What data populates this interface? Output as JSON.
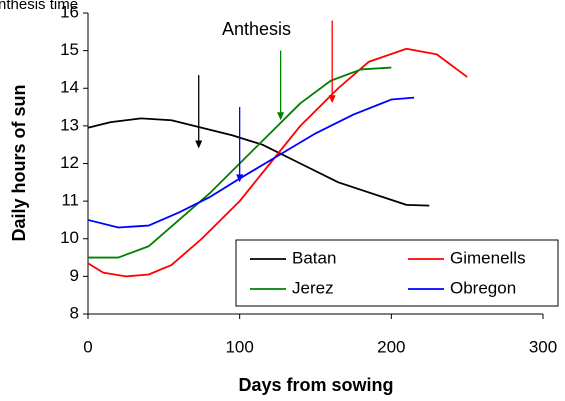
{
  "chart_data": {
    "type": "line",
    "xlabel": "Days from sowing",
    "ylabel": "Daily hours of sun",
    "annotations": [
      "Anthesis time",
      "Anthesis"
    ],
    "xlim": [
      0,
      300
    ],
    "xticks": [
      0,
      100,
      200,
      300
    ],
    "ylim": [
      8,
      16
    ],
    "yticks": [
      8,
      9,
      10,
      11,
      12,
      13,
      14,
      15,
      16
    ],
    "series": [
      {
        "name": "Batan",
        "color": "#000000",
        "x": [
          0,
          15,
          35,
          55,
          75,
          95,
          115,
          140,
          165,
          195,
          210,
          225
        ],
        "values": [
          12.95,
          13.1,
          13.2,
          13.15,
          12.95,
          12.75,
          12.5,
          12.0,
          11.5,
          11.1,
          10.9,
          10.88
        ]
      },
      {
        "name": "Gimenells",
        "color": "#ff0000",
        "x": [
          0,
          10,
          25,
          40,
          55,
          75,
          100,
          120,
          140,
          165,
          185,
          210,
          230,
          250
        ],
        "values": [
          9.35,
          9.1,
          9.0,
          9.05,
          9.3,
          10.0,
          11.0,
          12.0,
          13.0,
          14.0,
          14.7,
          15.05,
          14.9,
          14.3
        ]
      },
      {
        "name": "Jerez",
        "color": "#008000",
        "x": [
          0,
          20,
          40,
          60,
          80,
          100,
          120,
          140,
          160,
          180,
          200
        ],
        "values": [
          9.5,
          9.5,
          9.8,
          10.5,
          11.2,
          12.0,
          12.8,
          13.6,
          14.2,
          14.5,
          14.55
        ]
      },
      {
        "name": "Obregon",
        "color": "#0000ff",
        "x": [
          0,
          20,
          40,
          60,
          80,
          100,
          125,
          150,
          175,
          200,
          215
        ],
        "values": [
          10.5,
          10.3,
          10.35,
          10.7,
          11.1,
          11.6,
          12.2,
          12.8,
          13.3,
          13.7,
          13.75
        ]
      }
    ],
    "arrows": [
      {
        "color": "#000000",
        "x": 73,
        "from": 14.35,
        "to": 12.4
      },
      {
        "color": "#0000ff",
        "x": 100,
        "from": 13.5,
        "to": 11.5
      },
      {
        "color": "#008000",
        "x": 127,
        "from": 15.0,
        "to": 13.15
      },
      {
        "color": "#ff0000",
        "x": 161,
        "from": 15.8,
        "to": 13.6
      }
    ]
  }
}
